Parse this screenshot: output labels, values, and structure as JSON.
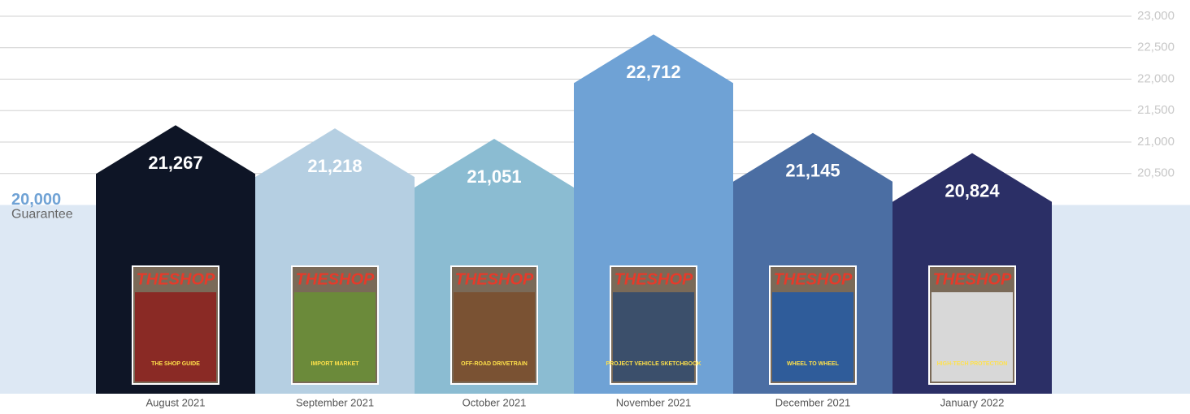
{
  "chart_data": {
    "type": "bar",
    "categories": [
      "August 2021",
      "September 2021",
      "October 2021",
      "November 2021",
      "December 2021",
      "January 2022"
    ],
    "values": [
      21267,
      21218,
      21051,
      22712,
      21145,
      20824
    ],
    "value_labels": [
      "21,267",
      "21,218",
      "21,051",
      "22,712",
      "21,145",
      "20,824"
    ],
    "colors": [
      "#0e1526",
      "#b5cfe2",
      "#8bbcd2",
      "#6fa2d5",
      "#4b6ea3",
      "#2b2f66"
    ],
    "ylim": [
      17000,
      23000
    ],
    "yticks": [
      {
        "value": 20500,
        "label": "20,500"
      },
      {
        "value": 21000,
        "label": "21,000"
      },
      {
        "value": 21500,
        "label": "21,500"
      },
      {
        "value": 22000,
        "label": "22,000"
      },
      {
        "value": 22500,
        "label": "22,500"
      },
      {
        "value": 23000,
        "label": "23,000"
      }
    ],
    "grid": true,
    "guarantee": {
      "value": 20000,
      "label": "20,000",
      "text": "Guarantee"
    },
    "cover_title": "THESHOP",
    "cover_headlines": [
      "THE SHOP GUIDE",
      "IMPORT MARKET",
      "OFF-ROAD DRIVETRAIN",
      "PROJECT VEHICLE SKETCHBOOK",
      "WHEEL TO WHEEL",
      "HIGH-TECH PROTECTION"
    ]
  }
}
